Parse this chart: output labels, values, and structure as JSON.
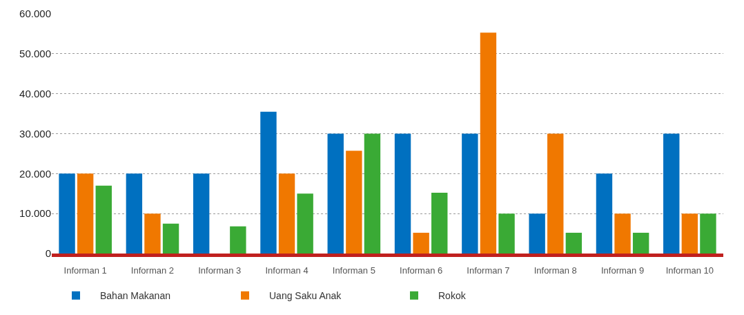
{
  "chart_data": {
    "type": "bar",
    "categories": [
      "Informan 1",
      "Informan 2",
      "Informan 3",
      "Informan 4",
      "Informan 5",
      "Informan 6",
      "Informan 7",
      "Informan 8",
      "Informan 9",
      "Informan 10"
    ],
    "series": [
      {
        "name": "Bahan Makanan",
        "color": "#0070c0",
        "values": [
          20000,
          20000,
          20000,
          35500,
          30000,
          30000,
          30000,
          10000,
          20000,
          30000
        ]
      },
      {
        "name": "Uang Saku Anak",
        "color": "#f07800",
        "values": [
          20000,
          10000,
          null,
          20000,
          25700,
          5200,
          55300,
          30000,
          10000,
          10000
        ]
      },
      {
        "name": "Rokok",
        "color": "#3aaa35",
        "values": [
          17000,
          7500,
          6800,
          15000,
          30000,
          15200,
          10000,
          5200,
          5200,
          10000
        ]
      }
    ],
    "ylim": [
      0,
      60000
    ],
    "yticks": [
      {
        "value": 0,
        "label": "0"
      },
      {
        "value": 10000,
        "label": "10.000"
      },
      {
        "value": 20000,
        "label": "20.000"
      },
      {
        "value": 30000,
        "label": "30.000"
      },
      {
        "value": 40000,
        "label": "40.000"
      },
      {
        "value": 50000,
        "label": "50.000"
      },
      {
        "value": 60000,
        "label": "60.000"
      }
    ],
    "grid": "y",
    "legend": "bottom left"
  }
}
